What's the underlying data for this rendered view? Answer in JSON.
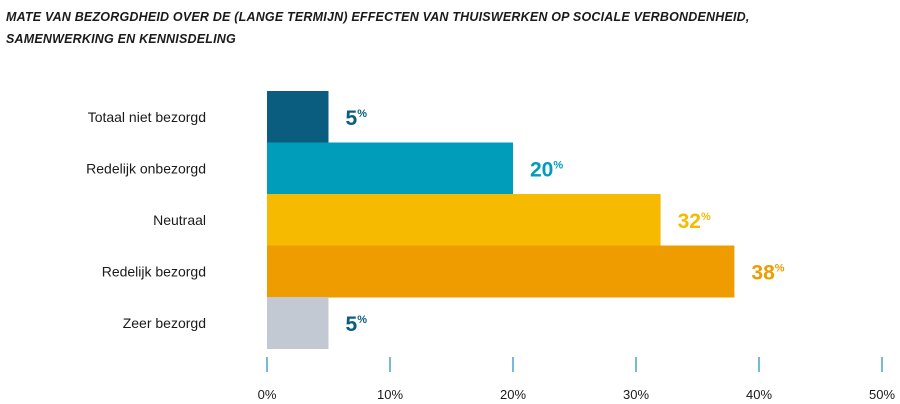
{
  "title_lines": [
    "MATE VAN BEZORGDHEID OVER DE (LANGE TERMIJN) EFFECTEN VAN THUISWERKEN OP SOCIALE VERBONDENHEID,",
    "SAMENWERKING EN KENNISDELING"
  ],
  "chart_data": {
    "type": "bar",
    "orientation": "horizontal",
    "title": "MATE VAN BEZORGDHEID OVER DE (LANGE TERMIJN) EFFECTEN VAN THUISWERKEN OP SOCIALE VERBONDENHEID, SAMENWERKING EN KENNISDELING",
    "categories": [
      "Totaal niet bezorgd",
      "Redelijk onbezorgd",
      "Neutraal",
      "Redelijk bezorgd",
      "Zeer bezorgd"
    ],
    "values": [
      5,
      20,
      32,
      38,
      5
    ],
    "value_labels": [
      "5",
      "20",
      "32",
      "38",
      "5"
    ],
    "value_suffix": "%",
    "colors": [
      "#0b5d80",
      "#009dbb",
      "#f6bb00",
      "#ef9c00",
      "#c3c9d3"
    ],
    "label_colors": [
      "#0b5d80",
      "#009dbb",
      "#f6bb00",
      "#ef9c00",
      "#0b5d80"
    ],
    "xlim": [
      0,
      50
    ],
    "ticks": [
      0,
      10,
      20,
      30,
      40,
      50
    ],
    "tick_labels": [
      "0%",
      "10%",
      "20%",
      "30%",
      "40%",
      "50%"
    ],
    "tick_color": "#2a96c4",
    "xlabel": "",
    "ylabel": "",
    "grid": false
  }
}
